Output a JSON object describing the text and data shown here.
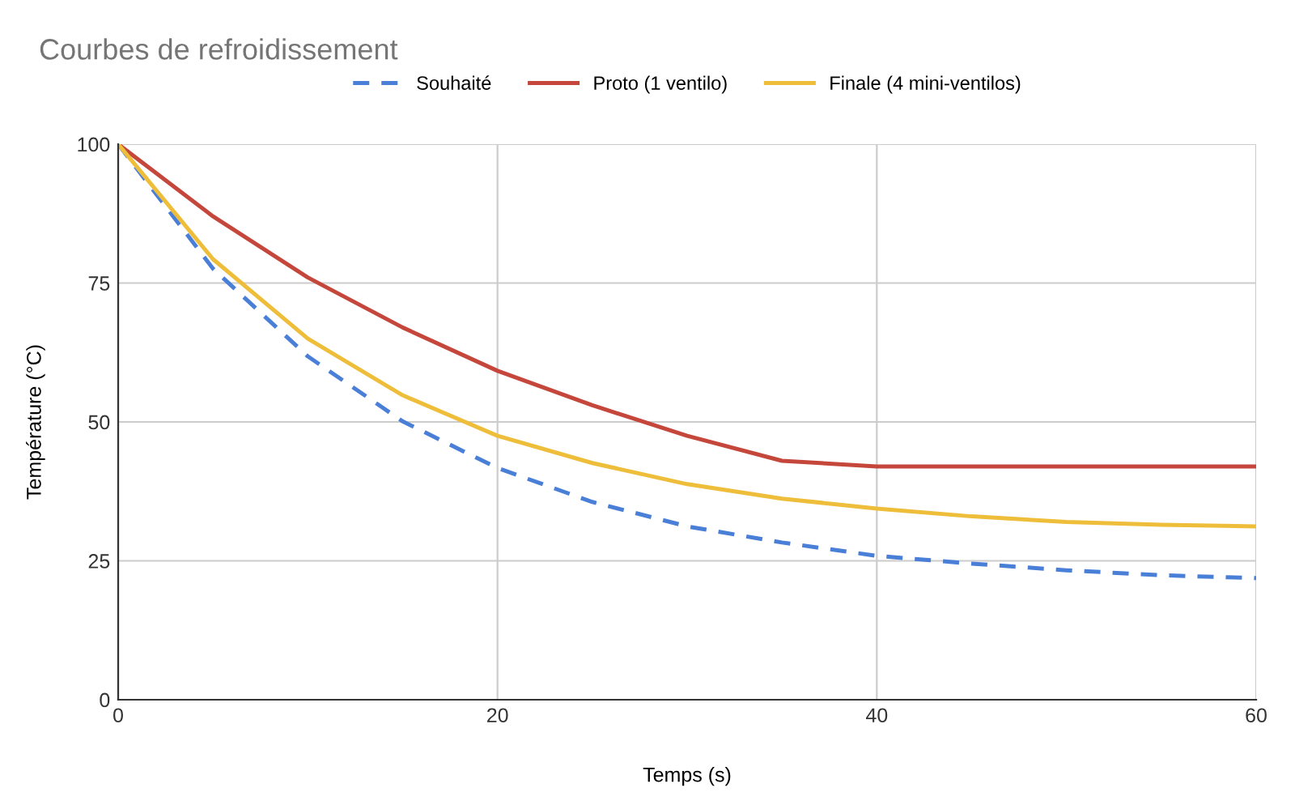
{
  "chart_data": {
    "type": "line",
    "title": "Courbes de refroidissement",
    "xlabel": "Temps (s)",
    "ylabel": "Température (°C)",
    "x": [
      0,
      5,
      10,
      15,
      20,
      25,
      30,
      35,
      40,
      45,
      50,
      55,
      60
    ],
    "series": [
      {
        "name": "Souhaité",
        "color": "#4a7fd8",
        "line_style": "dashed",
        "values": [
          100,
          77.6,
          61.8,
          50.1,
          41.7,
          35.6,
          31.2,
          28.3,
          25.9,
          24.5,
          23.3,
          22.4,
          21.9
        ]
      },
      {
        "name": "Proto (1 ventilo)",
        "color": "#c5473b",
        "line_style": "solid",
        "values": [
          100,
          87,
          76,
          67,
          59.2,
          53,
          47.5,
          43,
          42,
          42,
          42,
          42,
          42
        ]
      },
      {
        "name": "Finale (4 mini-ventilos)",
        "color": "#eebd3a",
        "line_style": "solid",
        "values": [
          100,
          79.3,
          65,
          54.8,
          47.5,
          42.6,
          38.8,
          36.2,
          34.4,
          33,
          32,
          31.5,
          31.2
        ]
      }
    ],
    "xlim": [
      0,
      60
    ],
    "xticks": [
      0,
      20,
      40,
      60
    ],
    "ylim": [
      0,
      100
    ],
    "yticks": [
      0,
      25,
      50,
      75,
      100
    ],
    "grid": true,
    "legend": "top",
    "marker": "none"
  }
}
